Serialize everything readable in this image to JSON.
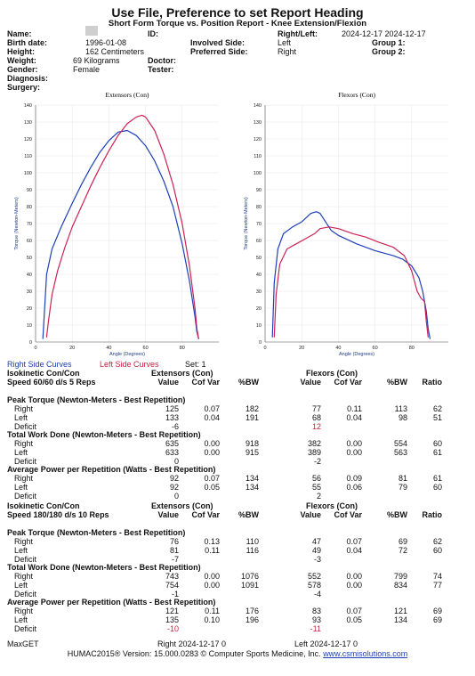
{
  "header": {
    "title": "Use File, Preference to set Report Heading",
    "subtitle": "Short Form Torque vs. Position Report - Knee Extension/Flexion"
  },
  "patient": {
    "name_label": "Name:",
    "id_label": "ID:",
    "right_left_label": "Right/Left:",
    "right_left_value": "2024-12-17 2024-12-17",
    "birth_label": "Birth date:",
    "birth_value": "1996-01-08",
    "involved_label": "Involved Side:",
    "involved_value": "Left",
    "group1_label": "Group 1:",
    "height_label": "Height:",
    "height_value": "162 Centimeters",
    "preferred_label": "Preferred Side:",
    "preferred_value": "Right",
    "group2_label": "Group 2:",
    "weight_label": "Weight:",
    "weight_value": "69 Kilograms",
    "doctor_label": "Doctor:",
    "gender_label": "Gender:",
    "gender_value": "Female",
    "tester_label": "Tester:",
    "diagnosis_label": "Diagnosis:",
    "surgery_label": "Surgery:"
  },
  "chart_data": [
    {
      "type": "line",
      "title": "Extensors (Con)",
      "xlabel": "Angle (Degrees)",
      "ylabel": "Torque (Newton-Meters)",
      "xlim": [
        0,
        100
      ],
      "ylim": [
        0,
        140
      ],
      "xticks": [
        0,
        20,
        40,
        60,
        80
      ],
      "yticks": [
        0,
        10,
        20,
        30,
        40,
        50,
        60,
        70,
        80,
        90,
        100,
        110,
        120,
        130,
        140
      ],
      "grid": true,
      "series": [
        {
          "name": "Right Side Curves",
          "color": "#1d3fb8",
          "x": [
            4,
            6,
            9,
            14,
            20,
            25,
            30,
            35,
            40,
            45,
            50,
            55,
            60,
            65,
            70,
            75,
            80,
            84,
            87,
            88,
            89
          ],
          "y": [
            2,
            40,
            55,
            68,
            82,
            93,
            103,
            112,
            119,
            124,
            125,
            122,
            116,
            107,
            95,
            80,
            58,
            36,
            15,
            6,
            2
          ]
        },
        {
          "name": "Left Side Curves",
          "color": "#cc2255",
          "x": [
            6,
            7,
            9,
            12,
            16,
            20,
            25,
            30,
            35,
            40,
            45,
            50,
            55,
            58,
            60,
            65,
            70,
            75,
            80,
            84,
            87,
            88,
            89
          ],
          "y": [
            3,
            12,
            28,
            42,
            56,
            68,
            80,
            92,
            103,
            113,
            122,
            129,
            133,
            134,
            133,
            125,
            111,
            93,
            70,
            45,
            20,
            8,
            2
          ]
        }
      ]
    },
    {
      "type": "line",
      "title": "Flexors (Con)",
      "xlabel": "Angle (Degrees)",
      "ylabel": "Torque (Newton-Meters)",
      "xlim": [
        0,
        100
      ],
      "ylim": [
        0,
        140
      ],
      "xticks": [
        0,
        20,
        40,
        60,
        80
      ],
      "yticks": [
        0,
        10,
        20,
        30,
        40,
        50,
        60,
        70,
        80,
        90,
        100,
        110,
        120,
        130,
        140
      ],
      "grid": true,
      "series": [
        {
          "name": "Right Side Curves",
          "color": "#1d3fb8",
          "x": [
            4,
            5,
            7,
            10,
            15,
            20,
            25,
            28,
            30,
            33,
            36,
            40,
            50,
            60,
            70,
            75,
            80,
            84,
            86,
            88,
            89,
            90
          ],
          "y": [
            3,
            35,
            55,
            64,
            68,
            71,
            76,
            77,
            76,
            71,
            66,
            63,
            58,
            54,
            51,
            49,
            45,
            38,
            30,
            18,
            8,
            2
          ]
        },
        {
          "name": "Left Side Curves",
          "color": "#cc2255",
          "x": [
            5,
            6,
            8,
            12,
            17,
            22,
            27,
            30,
            35,
            40,
            48,
            55,
            62,
            70,
            76,
            80,
            83,
            85,
            87,
            88,
            89
          ],
          "y": [
            3,
            28,
            46,
            55,
            58,
            61,
            64,
            67,
            68,
            67,
            64,
            62,
            59,
            56,
            51,
            42,
            30,
            26,
            24,
            12,
            3
          ]
        }
      ]
    }
  ],
  "legend": {
    "right": "Right Side Curves",
    "left": "Left Side Curves",
    "set": "Set: 1"
  },
  "sec60": {
    "mode": "Isokinetic Con/Con",
    "speed": "Speed 60/60 d/s 5 Reps",
    "ext_head": "Extensors (Con)",
    "flx_head": "Flexors (Con)",
    "cols": [
      "Value",
      "Cof Var",
      "%BW",
      "Value",
      "Cof Var",
      "%BW",
      "Ratio"
    ],
    "groups": [
      {
        "title": "Peak Torque (Newton-Meters - Best Repetition)",
        "right": [
          "Right",
          "125",
          "0.07",
          "182",
          "77",
          "0.11",
          "113",
          "62"
        ],
        "left": [
          "Left",
          "133",
          "0.04",
          "191",
          "68",
          "0.04",
          "98",
          "51"
        ],
        "deficit": [
          "Deficit",
          "-6",
          "12"
        ]
      },
      {
        "title": "Total Work Done (Newton-Meters - Best Repetition)",
        "right": [
          "Right",
          "635",
          "0.00",
          "918",
          "382",
          "0.00",
          "554",
          "60"
        ],
        "left": [
          "Left",
          "633",
          "0.00",
          "915",
          "389",
          "0.00",
          "563",
          "61"
        ],
        "deficit": [
          "Deficit",
          "0",
          "-2"
        ]
      },
      {
        "title": "Average Power per Repetition (Watts - Best Repetition)",
        "right": [
          "Right",
          "92",
          "0.07",
          "134",
          "56",
          "0.09",
          "81",
          "61"
        ],
        "left": [
          "Left",
          "92",
          "0.05",
          "134",
          "55",
          "0.06",
          "79",
          "60"
        ],
        "deficit": [
          "Deficit",
          "0",
          "2"
        ]
      }
    ]
  },
  "sec180": {
    "mode": "Isokinetic Con/Con",
    "speed": "Speed 180/180 d/s 10 Reps",
    "ext_head": "Extensors (Con)",
    "flx_head": "Flexors (Con)",
    "cols": [
      "Value",
      "Cof Var",
      "%BW",
      "Value",
      "Cof Var",
      "%BW",
      "Ratio"
    ],
    "groups": [
      {
        "title": "Peak Torque (Newton-Meters - Best Repetition)",
        "right": [
          "Right",
          "76",
          "0.13",
          "110",
          "47",
          "0.07",
          "69",
          "62"
        ],
        "left": [
          "Left",
          "81",
          "0.11",
          "116",
          "49",
          "0.04",
          "72",
          "60"
        ],
        "deficit": [
          "Deficit",
          "-7",
          "-3"
        ]
      },
      {
        "title": "Total Work Done (Newton-Meters - Best Repetition)",
        "right": [
          "Right",
          "743",
          "0.00",
          "1076",
          "552",
          "0.00",
          "799",
          "74"
        ],
        "left": [
          "Left",
          "754",
          "0.00",
          "1091",
          "578",
          "0.00",
          "834",
          "77"
        ],
        "deficit": [
          "Deficit",
          "-1",
          "-4"
        ]
      },
      {
        "title": "Average Power per Repetition (Watts - Best Repetition)",
        "right": [
          "Right",
          "121",
          "0.11",
          "176",
          "83",
          "0.07",
          "121",
          "69"
        ],
        "left": [
          "Left",
          "135",
          "0.10",
          "196",
          "93",
          "0.05",
          "134",
          "69"
        ],
        "deficit": [
          "Deficit",
          "-10",
          "-11"
        ]
      }
    ]
  },
  "maxget": {
    "label": "MaxGET",
    "right": "Right 2024-12-17 0",
    "left": "Left 2024-12-17 0"
  },
  "footer": {
    "text": "HUMAC2015® Version: 15.000.0283 © Computer Sports Medicine, Inc.",
    "link": "www.csmisolutions.com"
  }
}
